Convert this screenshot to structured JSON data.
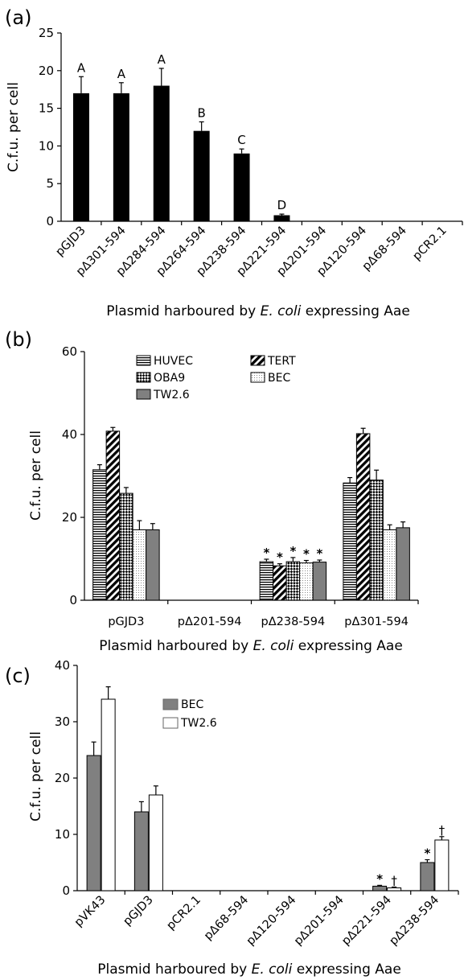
{
  "colors": {
    "black": "#000000",
    "gray": "#808080",
    "white": "#ffffff"
  },
  "chart_data": [
    {
      "panel_label": "(a)",
      "type": "bar",
      "ylabel": "C.f.u. per cell",
      "xlabel_parts": [
        "Plasmid harboured by ",
        "E. coli",
        " expressing Aae"
      ],
      "ylim": [
        0,
        25
      ],
      "yticks": [
        "0",
        "5",
        "10",
        "15",
        "20",
        "25"
      ],
      "categories": [
        "pGJD3",
        "pΔ301-594",
        "pΔ284-594",
        "pΔ264-594",
        "pΔ238-594",
        "pΔ221-594",
        "pΔ201-594",
        "pΔ120-594",
        "pΔ68-594",
        "pCR2.1"
      ],
      "series": [
        {
          "values": [
            17,
            17,
            18,
            12,
            9,
            0.8,
            0,
            0,
            0,
            0
          ],
          "errors": [
            2.2,
            1.4,
            2.3,
            1.2,
            0.6,
            0.15,
            0,
            0,
            0,
            0
          ]
        }
      ],
      "annotations": [
        "A",
        "A",
        "A",
        "B",
        "C",
        "D",
        "",
        "",
        "",
        ""
      ],
      "grid": false
    },
    {
      "panel_label": "(b)",
      "type": "bar",
      "ylabel": "C.f.u. per cell",
      "xlabel_parts": [
        "Plasmid harboured by ",
        "E. coli",
        " expressing Aae"
      ],
      "ylim": [
        0,
        60
      ],
      "yticks": [
        "0",
        "20",
        "40",
        "60"
      ],
      "categories": [
        "pGJD3",
        "pΔ201-594",
        "pΔ238-594",
        "pΔ301-594"
      ],
      "series": [
        {
          "name": "HUVEC",
          "pattern": "hlines",
          "values": [
            31.5,
            0,
            9.3,
            28.3
          ],
          "errors": [
            1.2,
            0,
            0.6,
            1.3
          ]
        },
        {
          "name": "TERT",
          "pattern": "diag",
          "values": [
            40.8,
            0,
            8.3,
            40.2
          ],
          "errors": [
            0.9,
            0,
            0.5,
            1.3
          ]
        },
        {
          "name": "OBA9",
          "pattern": "checker",
          "values": [
            25.8,
            0,
            9.3,
            29.0
          ],
          "errors": [
            1.4,
            0,
            1.0,
            2.4
          ]
        },
        {
          "name": "BEC",
          "pattern": "dots",
          "values": [
            17.0,
            0,
            9.0,
            17.0
          ],
          "errors": [
            2.2,
            0,
            0.6,
            1.2
          ]
        },
        {
          "name": "TW2.6",
          "pattern": "gray",
          "values": [
            17.0,
            0,
            9.2,
            17.5
          ],
          "errors": [
            1.5,
            0,
            0.5,
            1.4
          ]
        }
      ],
      "annotations": [
        [
          "",
          "",
          "",
          "",
          ""
        ],
        [
          "",
          "",
          "",
          "",
          ""
        ],
        [
          "*",
          "*",
          "*",
          "*",
          "*"
        ],
        [
          "",
          "",
          "",
          "",
          ""
        ]
      ],
      "legend_position": "top-left",
      "grid": false
    },
    {
      "panel_label": "(c)",
      "type": "bar",
      "ylabel": "C.f.u. per cell",
      "xlabel_parts": [
        "Plasmid harboured by ",
        "E. coli",
        " expressing Aae"
      ],
      "ylim": [
        0,
        40
      ],
      "yticks": [
        "0",
        "10",
        "20",
        "30",
        "40"
      ],
      "categories": [
        "pVK43",
        "pGJD3",
        "pCR2.1",
        "pΔ68-594",
        "pΔ120-594",
        "pΔ201-594",
        "pΔ221-594",
        "pΔ238-594"
      ],
      "series": [
        {
          "name": "BEC",
          "pattern": "gray",
          "values": [
            24,
            14,
            0,
            0,
            0,
            0,
            0.8,
            5.0
          ],
          "errors": [
            2.4,
            1.8,
            0,
            0,
            0,
            0,
            0.15,
            0.5
          ]
        },
        {
          "name": "TW2.6",
          "pattern": "white",
          "values": [
            34,
            17,
            0,
            0,
            0,
            0,
            0.5,
            9.0
          ],
          "errors": [
            2.2,
            1.6,
            0,
            0,
            0,
            0,
            0.15,
            0.6
          ]
        }
      ],
      "annotations": [
        [
          "",
          ""
        ],
        [
          "",
          ""
        ],
        [
          "",
          ""
        ],
        [
          "",
          ""
        ],
        [
          "",
          ""
        ],
        [
          "",
          ""
        ],
        [
          "*",
          "†"
        ],
        [
          "*",
          "†"
        ]
      ],
      "legend_position": "top-center",
      "grid": false
    }
  ]
}
